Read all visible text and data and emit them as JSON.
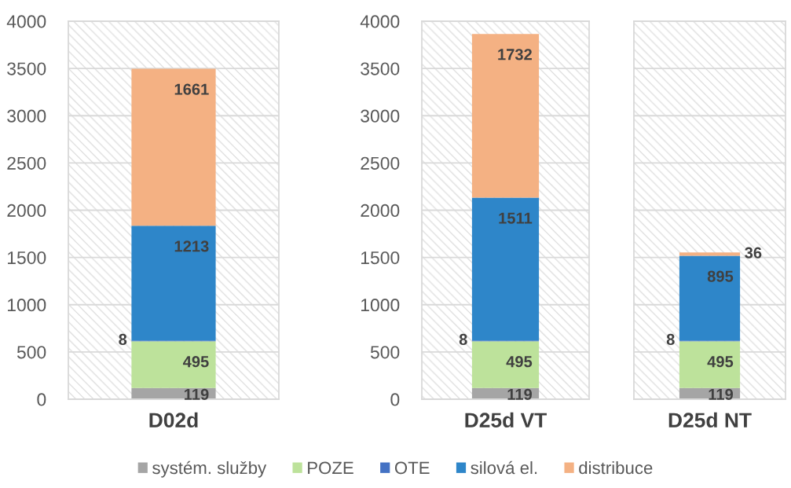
{
  "chart_data": [
    {
      "type": "bar",
      "stacked": true,
      "categories": [
        "D02d"
      ],
      "series": [
        {
          "name": "systém. služby",
          "color": "#a5a5a5",
          "values": [
            119
          ]
        },
        {
          "name": "POZE",
          "color": "#bde29b",
          "values": [
            495
          ]
        },
        {
          "name": "OTE",
          "color": "#4472c4",
          "values": [
            8
          ]
        },
        {
          "name": "silová el.",
          "color": "#2e86c9",
          "values": [
            1213
          ]
        },
        {
          "name": "distribuce",
          "color": "#f4b183",
          "values": [
            1661
          ]
        }
      ],
      "ylim": [
        0,
        4000
      ],
      "yticks": [
        0,
        500,
        1000,
        1500,
        2000,
        2500,
        3000,
        3500,
        4000
      ],
      "grid": "y",
      "data_labels": true,
      "legend": "bottom"
    },
    {
      "type": "bar",
      "stacked": true,
      "categories": [
        "D25d VT"
      ],
      "series": [
        {
          "name": "systém. služby",
          "color": "#a5a5a5",
          "values": [
            119
          ]
        },
        {
          "name": "POZE",
          "color": "#bde29b",
          "values": [
            495
          ]
        },
        {
          "name": "OTE",
          "color": "#4472c4",
          "values": [
            8
          ]
        },
        {
          "name": "silová el.",
          "color": "#2e86c9",
          "values": [
            1511
          ]
        },
        {
          "name": "distribuce",
          "color": "#f4b183",
          "values": [
            1732
          ]
        }
      ],
      "ylim": [
        0,
        4000
      ],
      "yticks": [
        0,
        500,
        1000,
        1500,
        2000,
        2500,
        3000,
        3500,
        4000
      ],
      "grid": "y",
      "data_labels": true
    },
    {
      "type": "bar",
      "stacked": true,
      "categories": [
        "D25d NT"
      ],
      "series": [
        {
          "name": "systém. služby",
          "color": "#a5a5a5",
          "values": [
            119
          ]
        },
        {
          "name": "POZE",
          "color": "#bde29b",
          "values": [
            495
          ]
        },
        {
          "name": "OTE",
          "color": "#4472c4",
          "values": [
            8
          ]
        },
        {
          "name": "silová el.",
          "color": "#2e86c9",
          "values": [
            895
          ]
        },
        {
          "name": "distribuce",
          "color": "#f4b183",
          "values": [
            36
          ]
        }
      ],
      "ylim": [
        0,
        4000
      ],
      "yticks": [
        0,
        500,
        1000,
        1500,
        2000,
        2500,
        3000,
        3500,
        4000
      ],
      "grid": "y",
      "data_labels": true,
      "tick_labels": "x"
    }
  ]
}
